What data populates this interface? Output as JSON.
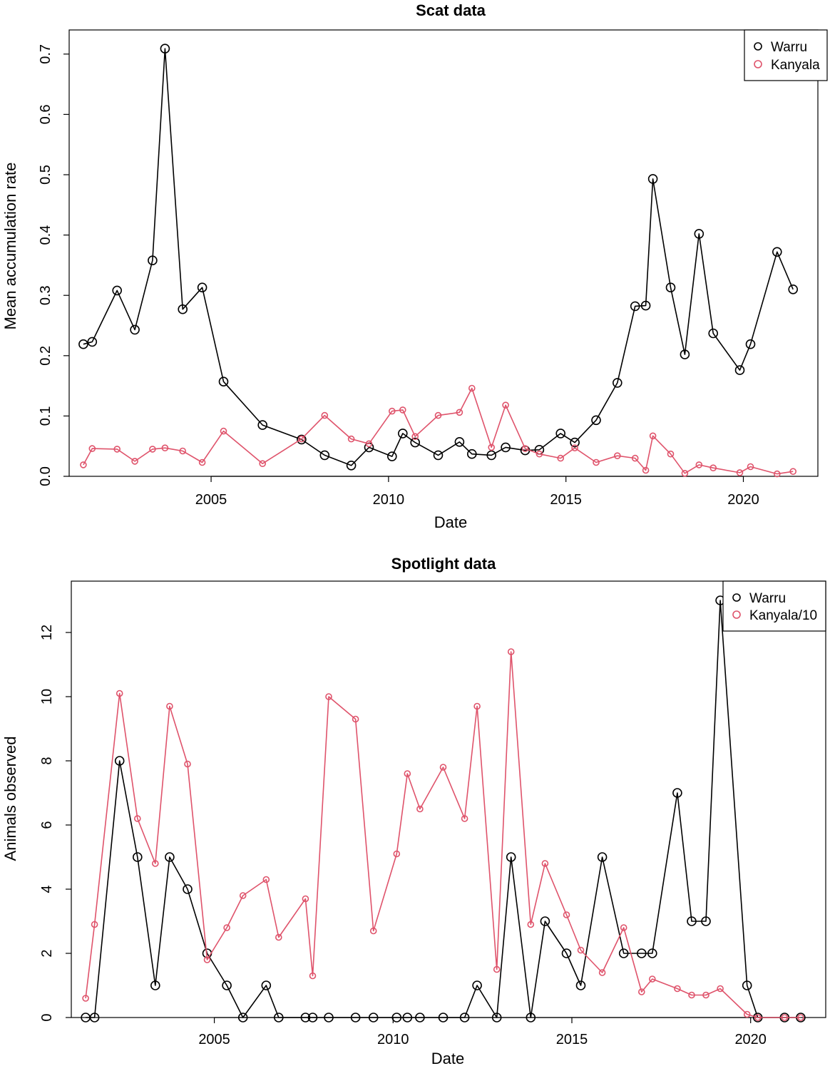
{
  "chart_data": [
    {
      "type": "line",
      "title": "Scat data",
      "xlabel": "Date",
      "ylabel": "Mean accumulation rate",
      "xlim": [
        2001.0,
        2022.1
      ],
      "ylim": [
        0.0,
        0.74
      ],
      "xticks": [
        2005,
        2010,
        2015,
        2020
      ],
      "xtick_labels": [
        "2005",
        "2010",
        "2015",
        "2020"
      ],
      "yticks": [
        0.0,
        0.1,
        0.2,
        0.3,
        0.4,
        0.5,
        0.6,
        0.7
      ],
      "ytick_labels": [
        "0.0",
        "0.1",
        "0.2",
        "0.3",
        "0.4",
        "0.5",
        "0.6",
        "0.7"
      ],
      "legend_position": "top-right",
      "series": [
        {
          "name": "Warru",
          "color": "#000000",
          "marker": "large-open-circle",
          "x": [
            2001.4,
            2001.65,
            2002.35,
            2002.85,
            2003.35,
            2003.7,
            2004.2,
            2004.75,
            2005.35,
            2006.45,
            2007.55,
            2008.2,
            2008.95,
            2009.45,
            2010.1,
            2010.4,
            2010.75,
            2011.4,
            2012.0,
            2012.35,
            2012.9,
            2013.3,
            2013.85,
            2014.25,
            2014.85,
            2015.25,
            2015.85,
            2016.45,
            2016.95,
            2017.25,
            2017.45,
            2017.95,
            2018.35,
            2018.75,
            2019.15,
            2019.9,
            2020.2,
            2020.95,
            2021.4
          ],
          "y": [
            0.219,
            0.223,
            0.308,
            0.243,
            0.358,
            0.709,
            0.277,
            0.313,
            0.157,
            0.085,
            0.061,
            0.035,
            0.018,
            0.048,
            0.033,
            0.071,
            0.056,
            0.035,
            0.057,
            0.037,
            0.035,
            0.048,
            0.043,
            0.044,
            0.071,
            0.056,
            0.093,
            0.155,
            0.282,
            0.283,
            0.493,
            0.313,
            0.202,
            0.402,
            0.237,
            0.176,
            0.219,
            0.372,
            0.31
          ]
        },
        {
          "name": "Kanyala",
          "color": "#df536b",
          "marker": "small-open-circle",
          "x": [
            2001.4,
            2001.65,
            2002.35,
            2002.85,
            2003.35,
            2003.7,
            2004.2,
            2004.75,
            2005.35,
            2006.45,
            2007.55,
            2008.2,
            2008.95,
            2009.45,
            2010.1,
            2010.4,
            2010.75,
            2011.4,
            2012.0,
            2012.35,
            2012.9,
            2013.3,
            2013.85,
            2014.25,
            2014.85,
            2015.25,
            2015.85,
            2016.45,
            2016.95,
            2017.25,
            2017.45,
            2017.95,
            2018.35,
            2018.75,
            2019.15,
            2019.9,
            2020.2,
            2020.95,
            2021.4
          ],
          "y": [
            0.019,
            0.046,
            0.045,
            0.025,
            0.045,
            0.047,
            0.042,
            0.023,
            0.075,
            0.021,
            0.062,
            0.101,
            0.062,
            0.054,
            0.108,
            0.11,
            0.066,
            0.101,
            0.106,
            0.146,
            0.048,
            0.118,
            0.046,
            0.037,
            0.03,
            0.047,
            0.023,
            0.034,
            0.03,
            0.01,
            0.067,
            0.037,
            0.005,
            0.019,
            0.014,
            0.006,
            0.016,
            0.004,
            0.008
          ]
        }
      ]
    },
    {
      "type": "line",
      "title": "Spotlight data",
      "xlabel": "Date",
      "ylabel": "Animals observed",
      "xlim": [
        2001.0,
        2022.1
      ],
      "ylim": [
        0.0,
        13.6
      ],
      "xticks": [
        2005,
        2010,
        2015,
        2020
      ],
      "xtick_labels": [
        "2005",
        "2010",
        "2015",
        "2020"
      ],
      "yticks": [
        0,
        2,
        4,
        6,
        8,
        10,
        12
      ],
      "ytick_labels": [
        "0",
        "2",
        "4",
        "6",
        "8",
        "10",
        "12"
      ],
      "legend_position": "top-right",
      "series": [
        {
          "name": "Warru",
          "color": "#000000",
          "marker": "large-open-circle",
          "x": [
            2001.4,
            2001.65,
            2002.35,
            2002.85,
            2003.35,
            2003.75,
            2004.25,
            2004.8,
            2005.35,
            2005.8,
            2006.45,
            2006.8,
            2007.55,
            2007.75,
            2008.2,
            2008.95,
            2009.45,
            2010.1,
            2010.4,
            2010.75,
            2011.4,
            2012.0,
            2012.35,
            2012.9,
            2013.3,
            2013.85,
            2014.25,
            2014.85,
            2015.25,
            2015.85,
            2016.45,
            2016.95,
            2017.25,
            2017.95,
            2018.35,
            2018.75,
            2019.15,
            2019.9,
            2020.2,
            2020.95,
            2021.4
          ],
          "y": [
            0,
            0,
            8,
            5,
            1,
            5,
            4,
            2,
            1,
            0,
            1,
            0,
            0,
            0,
            0,
            0,
            0,
            0,
            0,
            0,
            0,
            0,
            1,
            0,
            5,
            0,
            3,
            2,
            1,
            5,
            2,
            2,
            2,
            7,
            3,
            3,
            13,
            1,
            0,
            0,
            0
          ]
        },
        {
          "name": "Kanyala/10",
          "color": "#df536b",
          "marker": "small-open-circle",
          "x": [
            2001.4,
            2001.65,
            2002.35,
            2002.85,
            2003.35,
            2003.75,
            2004.25,
            2004.8,
            2005.35,
            2005.8,
            2006.45,
            2006.8,
            2007.55,
            2007.75,
            2008.2,
            2008.95,
            2009.45,
            2010.1,
            2010.4,
            2010.75,
            2011.4,
            2012.0,
            2012.35,
            2012.9,
            2013.3,
            2013.85,
            2014.25,
            2014.85,
            2015.25,
            2015.85,
            2016.45,
            2016.95,
            2017.25,
            2017.95,
            2018.35,
            2018.75,
            2019.15,
            2019.9,
            2020.2,
            2020.95,
            2021.4
          ],
          "y": [
            0.6,
            2.9,
            10.1,
            6.2,
            4.8,
            9.7,
            7.9,
            1.8,
            2.8,
            3.8,
            4.3,
            2.5,
            3.7,
            1.3,
            10.0,
            9.3,
            2.7,
            5.1,
            7.6,
            6.5,
            7.8,
            6.2,
            9.7,
            1.5,
            11.4,
            2.9,
            4.8,
            3.2,
            2.1,
            1.4,
            2.8,
            0.8,
            1.2,
            0.9,
            0.7,
            0.7,
            0.9,
            0.1,
            0.0,
            0.0,
            0.0
          ]
        }
      ]
    }
  ]
}
